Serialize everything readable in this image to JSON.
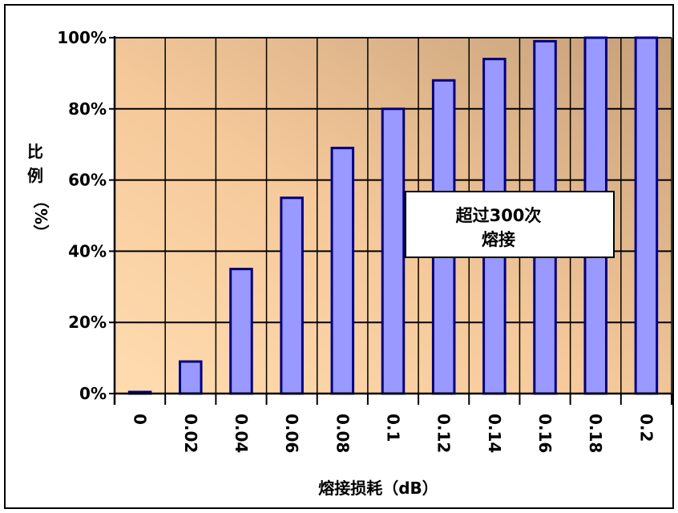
{
  "chart_data": {
    "type": "bar",
    "categories": [
      "0",
      "0.02",
      "0.04",
      "0.06",
      "0.08",
      "0.1",
      "0.12",
      "0.14",
      "0.16",
      "0.18",
      "0.2"
    ],
    "values": [
      0,
      9,
      35,
      55,
      69,
      80,
      88,
      94,
      99,
      100,
      100
    ],
    "ylim": [
      0,
      100
    ],
    "yticks": [
      "0%",
      "20%",
      "40%",
      "60%",
      "80%",
      "100%"
    ],
    "xlabel": "熔接损耗（dB）",
    "ylabel_chars": [
      "比",
      "例",
      "（%）"
    ],
    "annotation_lines": [
      "超过300次",
      "熔接"
    ],
    "grid": true,
    "colors": {
      "bar_fill": "#9999ff",
      "bar_edge": "#000080",
      "plot_bg_light": "#ffd9a8",
      "plot_bg_dark": "#c9a27b",
      "grid": "#000000"
    }
  }
}
